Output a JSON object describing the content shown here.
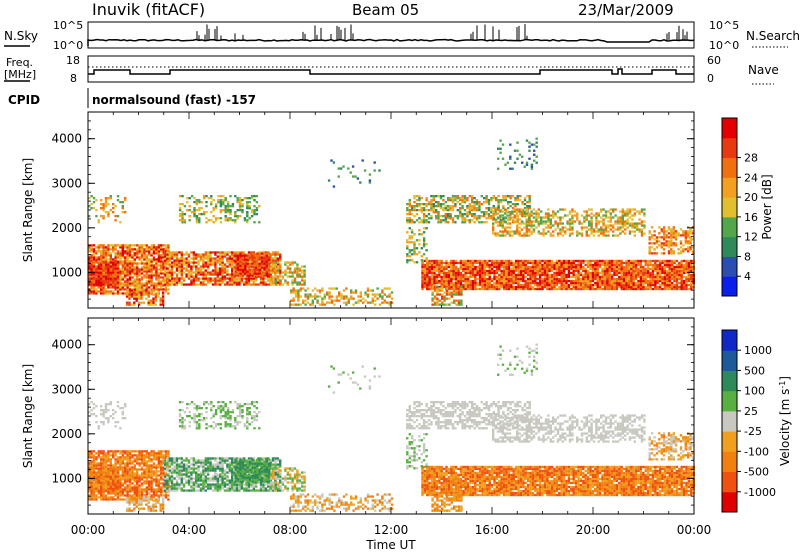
{
  "header": {
    "station": "Inuvik (fitACF)",
    "beam": "Beam 05",
    "date": "23/Mar/2009"
  },
  "noise_panel": {
    "left_label": "N.Sky",
    "right_label": "N.Search",
    "left_ticks": [
      "10^5",
      "10^0"
    ],
    "right_ticks": [
      "10^5",
      "10^0"
    ]
  },
  "freq_panel": {
    "left_label_line1": "Freq.",
    "left_label_line2": "[MHz]",
    "right_label": "Nave",
    "left_ticks": [
      "18",
      "8"
    ],
    "right_ticks": [
      "60",
      "0"
    ]
  },
  "cpid": {
    "label": "CPID",
    "program": "normalsound (fast) -157"
  },
  "colors": {
    "power": [
      "#0a1fe8",
      "#2b4fb0",
      "#2f8a5a",
      "#54a64a",
      "#e0c030",
      "#f2a020",
      "#f07010",
      "#e83a10",
      "#e40000"
    ],
    "velocity": [
      "#1028c8",
      "#1e5a9a",
      "#2f8a5a",
      "#58b040",
      "#c8c8c0",
      "#f0a020",
      "#f08010",
      "#f05010",
      "#e00000"
    ]
  },
  "chart_data": [
    {
      "type": "heatmap",
      "name": "power",
      "ylabel": "Slant Range [km]",
      "yticks": [
        "1000",
        "2000",
        "3000",
        "4000"
      ],
      "ylim": [
        200,
        4600
      ],
      "xlim": [
        0,
        24
      ],
      "colorbar_label": "Power [dB]",
      "colorbar_ticks": [
        "4",
        "8",
        "12",
        "16",
        "20",
        "24",
        "28"
      ],
      "grid": false
    },
    {
      "type": "heatmap",
      "name": "velocity",
      "ylabel": "Slant Range [km]",
      "yticks": [
        "1000",
        "2000",
        "3000",
        "4000"
      ],
      "ylim": [
        200,
        4600
      ],
      "xlim": [
        0,
        24
      ],
      "colorbar_label": "Velocity [m s",
      "colorbar_ticks": [
        "1000",
        "500",
        "100",
        "25",
        "-25",
        "-100",
        "-500",
        "-1000"
      ],
      "xticks": [
        "00:00",
        "04:00",
        "08:00",
        "12:00",
        "16:00",
        "20:00",
        "00:00"
      ],
      "xlabel": "Time UT",
      "grid": false
    }
  ]
}
